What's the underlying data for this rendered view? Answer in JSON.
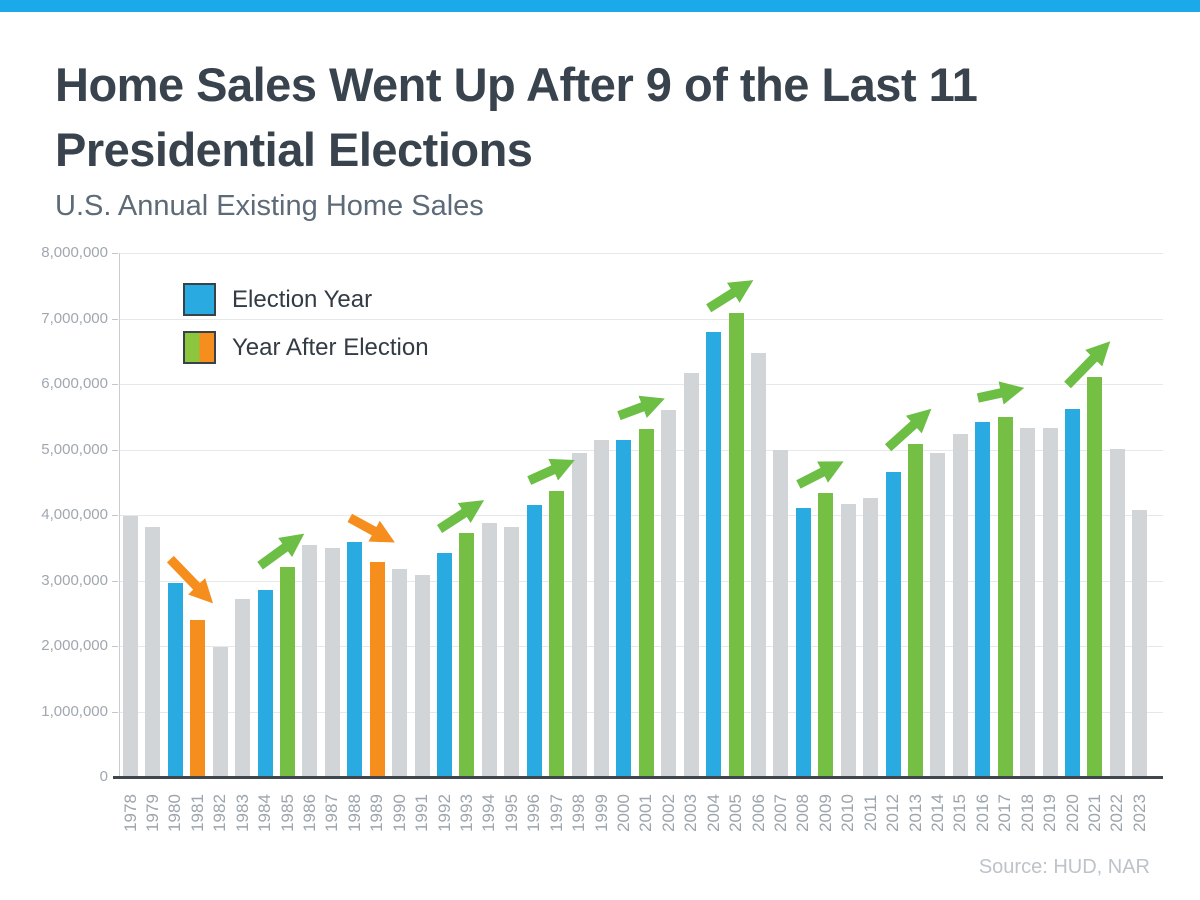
{
  "page": {
    "top_bar_color": "#1baae9",
    "title_color": "#39434e",
    "subtitle_color": "#5d6b78"
  },
  "header": {
    "title_line1": "Home Sales Went Up After 9 of the Last 11",
    "title_line2": "Presidential Elections",
    "subtitle": "U.S. Annual Existing Home Sales"
  },
  "legend": {
    "items": [
      {
        "label": "Election Year",
        "swatch": "blue"
      },
      {
        "label": "Year After Election",
        "swatch": "green-orange-split"
      }
    ]
  },
  "source": "Source: HUD, NAR",
  "chart_data": {
    "type": "bar",
    "title": "Home Sales Went Up After 9 of the Last 11 Presidential Elections",
    "subtitle": "U.S. Annual Existing Home Sales",
    "xlabel": "",
    "ylabel": "",
    "ylim": [
      0,
      8000000
    ],
    "ytick_interval": 1000000,
    "ytick_labels": [
      "0",
      "1,000,000",
      "2,000,000",
      "3,000,000",
      "4,000,000",
      "5,000,000",
      "6,000,000",
      "7,000,000",
      "8,000,000"
    ],
    "grid": true,
    "legend_position": "top-left-inside",
    "categories": [
      "1978",
      "1979",
      "1980",
      "1981",
      "1982",
      "1983",
      "1984",
      "1985",
      "1986",
      "1987",
      "1988",
      "1989",
      "1990",
      "1991",
      "1992",
      "1993",
      "1994",
      "1995",
      "1996",
      "1997",
      "1998",
      "1999",
      "2000",
      "2001",
      "2002",
      "2003",
      "2004",
      "2005",
      "2006",
      "2007",
      "2008",
      "2009",
      "2010",
      "2011",
      "2012",
      "2013",
      "2014",
      "2015",
      "2016",
      "2017",
      "2018",
      "2019",
      "2020",
      "2021",
      "2022",
      "2023"
    ],
    "values": [
      3980000,
      3820000,
      2960000,
      2400000,
      1990000,
      2710000,
      2860000,
      3200000,
      3540000,
      3500000,
      3590000,
      3280000,
      3170000,
      3080000,
      3420000,
      3720000,
      3880000,
      3820000,
      4160000,
      4360000,
      4940000,
      5150000,
      5150000,
      5310000,
      5610000,
      6170000,
      6790000,
      7080000,
      6470000,
      5000000,
      4100000,
      4330000,
      4170000,
      4260000,
      4660000,
      5090000,
      4940000,
      5230000,
      5420000,
      5500000,
      5330000,
      5330000,
      5620000,
      6110000,
      5010000,
      4080000
    ],
    "roles": [
      "",
      "",
      "election",
      "after-down",
      "",
      "",
      "election",
      "after-up",
      "",
      "",
      "election",
      "after-down",
      "",
      "",
      "election",
      "after-up",
      "",
      "",
      "election",
      "after-up",
      "",
      "",
      "election",
      "after-up",
      "",
      "",
      "election",
      "after-up",
      "",
      "",
      "election",
      "after-up",
      "",
      "",
      "election",
      "after-up",
      "",
      "",
      "election",
      "after-up",
      "",
      "",
      "election",
      "after-up",
      "",
      ""
    ],
    "arrows": [
      {
        "from": "1980",
        "to": "1981",
        "direction": "down",
        "color": "orange"
      },
      {
        "from": "1984",
        "to": "1985",
        "direction": "up",
        "color": "green"
      },
      {
        "from": "1988",
        "to": "1989",
        "direction": "down",
        "color": "orange"
      },
      {
        "from": "1992",
        "to": "1993",
        "direction": "up",
        "color": "green"
      },
      {
        "from": "1996",
        "to": "1997",
        "direction": "up",
        "color": "green"
      },
      {
        "from": "2000",
        "to": "2001",
        "direction": "up",
        "color": "green"
      },
      {
        "from": "2004",
        "to": "2005",
        "direction": "up",
        "color": "green"
      },
      {
        "from": "2008",
        "to": "2009",
        "direction": "up",
        "color": "green"
      },
      {
        "from": "2012",
        "to": "2013",
        "direction": "up",
        "color": "green"
      },
      {
        "from": "2016",
        "to": "2017",
        "direction": "up",
        "color": "green"
      },
      {
        "from": "2020",
        "to": "2021",
        "direction": "up",
        "color": "green"
      }
    ],
    "colors": {
      "default_bar": "#d2d5d8",
      "election_bar": "#29abe2",
      "after_up_bar": "#74bf44",
      "after_down_bar": "#f68e1e",
      "arrow_green": "#6cbe45",
      "arrow_orange": "#f68e1e",
      "legend_green": "#8cc63f",
      "legend_orange": "#f68e1e"
    }
  }
}
